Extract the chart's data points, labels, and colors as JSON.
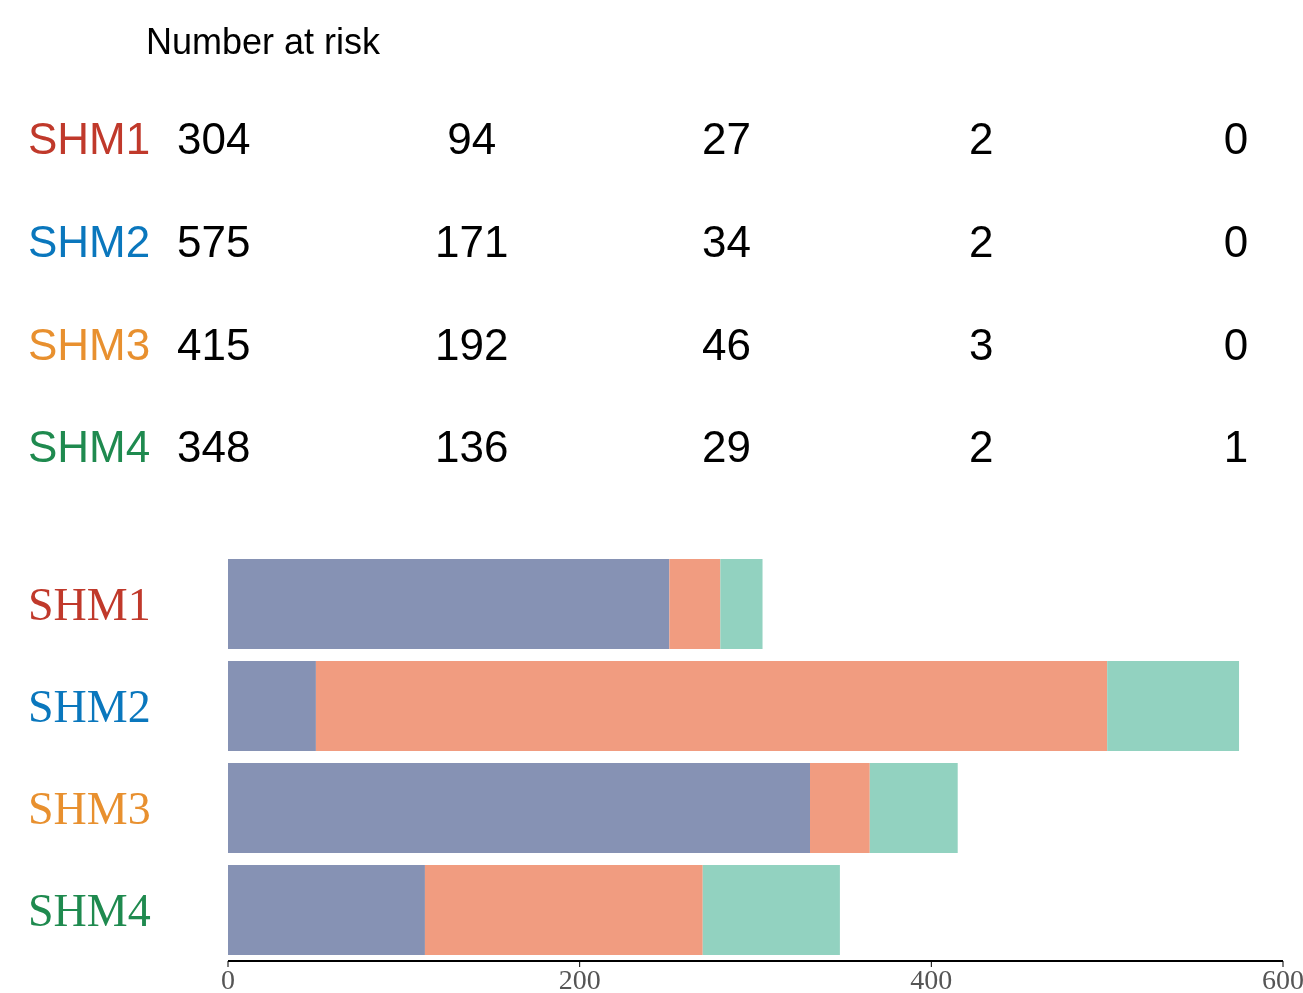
{
  "chart_data": [
    {
      "type": "other",
      "title": "Number at risk",
      "y_categories": [
        "SHM1",
        "SHM2",
        "SHM3",
        "SHM4"
      ],
      "colors": [
        "#c0392b",
        "#0a77bd",
        "#e8902f",
        "#1f8a4f"
      ],
      "annotations": [
        "304",
        "94",
        "27",
        "2",
        "0",
        "575",
        "171",
        "34",
        "2",
        "0",
        "415",
        "192",
        "46",
        "3",
        "0",
        "348",
        "136",
        "29",
        "2",
        "1"
      ]
    },
    {
      "type": "bar",
      "orientation": "horizontal",
      "stacked": true,
      "categories": [
        "SHM1",
        "SHM2",
        "SHM3",
        "SHM4"
      ],
      "series": [
        {
          "color": "#8692b4",
          "values": [
            251,
            50,
            331,
            112
          ]
        },
        {
          "color": "#f19c80",
          "values": [
            29,
            450,
            34,
            158
          ]
        },
        {
          "color": "#92d2c0",
          "values": [
            24,
            75,
            50,
            78
          ]
        }
      ],
      "xlim": [
        0,
        600
      ],
      "xticks": [
        0,
        200,
        400,
        600
      ],
      "grid": false,
      "legend": false
    }
  ]
}
